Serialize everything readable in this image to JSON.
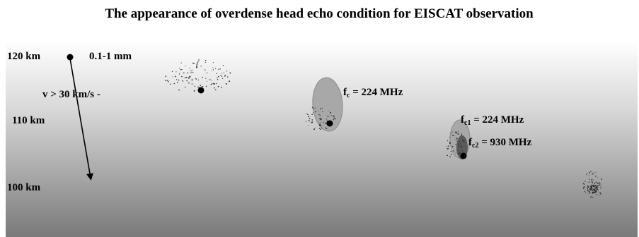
{
  "title": "The appearance of overdense head echo condition for EISCAT observation",
  "altitudes": [
    "120 km",
    "110 km",
    "100 km"
  ],
  "meteor": {
    "size_label": "0.1-1 mm",
    "velocity_label": "v > 30 km/s -"
  },
  "frequencies": {
    "single": {
      "symbol": "f",
      "subscript": "c",
      "value": " = 224 MHz"
    },
    "dual_1": {
      "symbol": "f",
      "subscript": "c1",
      "value": " = 224 MHz"
    },
    "dual_2": {
      "symbol": "f",
      "subscript": "c2",
      "value": " = 930 MHz"
    }
  },
  "colors": {
    "sky_top": "#ffffff",
    "sky_mid": "#d8d8d8",
    "sky_bottom": "#7a7a7a",
    "plasma_light": "#a8a8a8",
    "plasma_dark": "#5a5a5a",
    "meteor_body": "#000000"
  }
}
